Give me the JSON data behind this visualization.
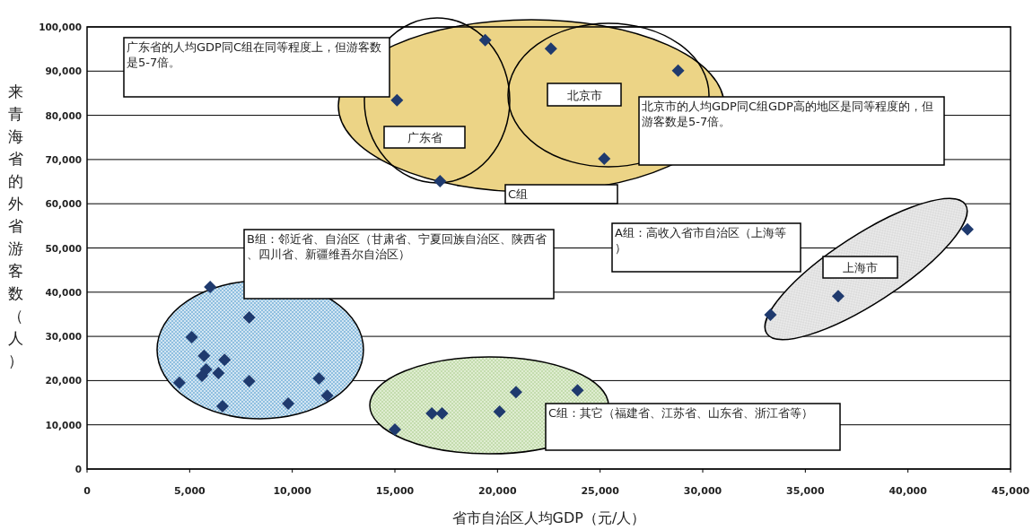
{
  "chart_data": {
    "type": "scatter",
    "xlabel": "省市自治区人均GDP（元/人）",
    "ylabel": "来青海省的外省游客数（人）",
    "xlim": [
      0,
      45000
    ],
    "ylim": [
      0,
      100000
    ],
    "xticks": [
      0,
      {
        "value": 5000,
        "label": "5,000"
      },
      {
        "value": 10000,
        "label": "10,000"
      },
      {
        "value": 15000,
        "label": "15,000"
      },
      {
        "value": 20000,
        "label": "20,000"
      },
      {
        "value": 25000,
        "label": "25,000"
      },
      {
        "value": 30000,
        "label": "30,000"
      },
      {
        "value": 35000,
        "label": "35,000"
      },
      {
        "value": 40000,
        "label": "40,000"
      },
      {
        "value": 45000,
        "label": "45,000"
      }
    ],
    "yticks": [
      0,
      {
        "value": 10000,
        "label": "10,000"
      },
      {
        "value": 20000,
        "label": "20,000"
      },
      {
        "value": 30000,
        "label": "30,000"
      },
      {
        "value": 40000,
        "label": "40,000"
      },
      {
        "value": 50000,
        "label": "50,000"
      },
      {
        "value": 60000,
        "label": "60,000"
      },
      {
        "value": 70000,
        "label": "70,000"
      },
      {
        "value": 80000,
        "label": "80,000"
      },
      {
        "value": 90000,
        "label": "90,000"
      },
      {
        "value": 100000,
        "label": "100,000"
      }
    ],
    "grid": "y",
    "marker": "diamond",
    "series": [
      {
        "color": "#1f3a6e",
        "x": [
          15100,
          19400,
          17200,
          22600,
          28800,
          25200,
          6000,
          7900,
          5100,
          5700,
          6700,
          5800,
          5600,
          6400,
          4500,
          7900,
          6600,
          9800,
          11300,
          11700,
          15000,
          16800,
          17300,
          20100,
          20900,
          23900,
          33300,
          36600,
          42900
        ],
        "values": [
          83400,
          97000,
          65100,
          95100,
          90100,
          70200,
          41200,
          34300,
          29800,
          25600,
          24700,
          22500,
          21100,
          21700,
          19500,
          19900,
          14200,
          14800,
          20500,
          16600,
          8900,
          12600,
          12600,
          13000,
          17400,
          17800,
          34900,
          39100,
          54200
        ]
      }
    ],
    "annotations": [
      "广东省的人均GDP同C组在同等程度上，但游客数是5-7倍。",
      "北京市的人均GDP同C组GDP高的地区是同等程度的，但游客数是5-7倍。",
      "B组：邻近省、自治区（甘肃省、宁夏回族自治区、陕西省、四川省、新疆维吾尔自治区）",
      "A组：高收入省市自治区（上海等）",
      "C组：其它（福建省、江苏省、山东省、浙江省等）",
      "广东省",
      "北京市",
      "C组",
      "上海市"
    ]
  }
}
